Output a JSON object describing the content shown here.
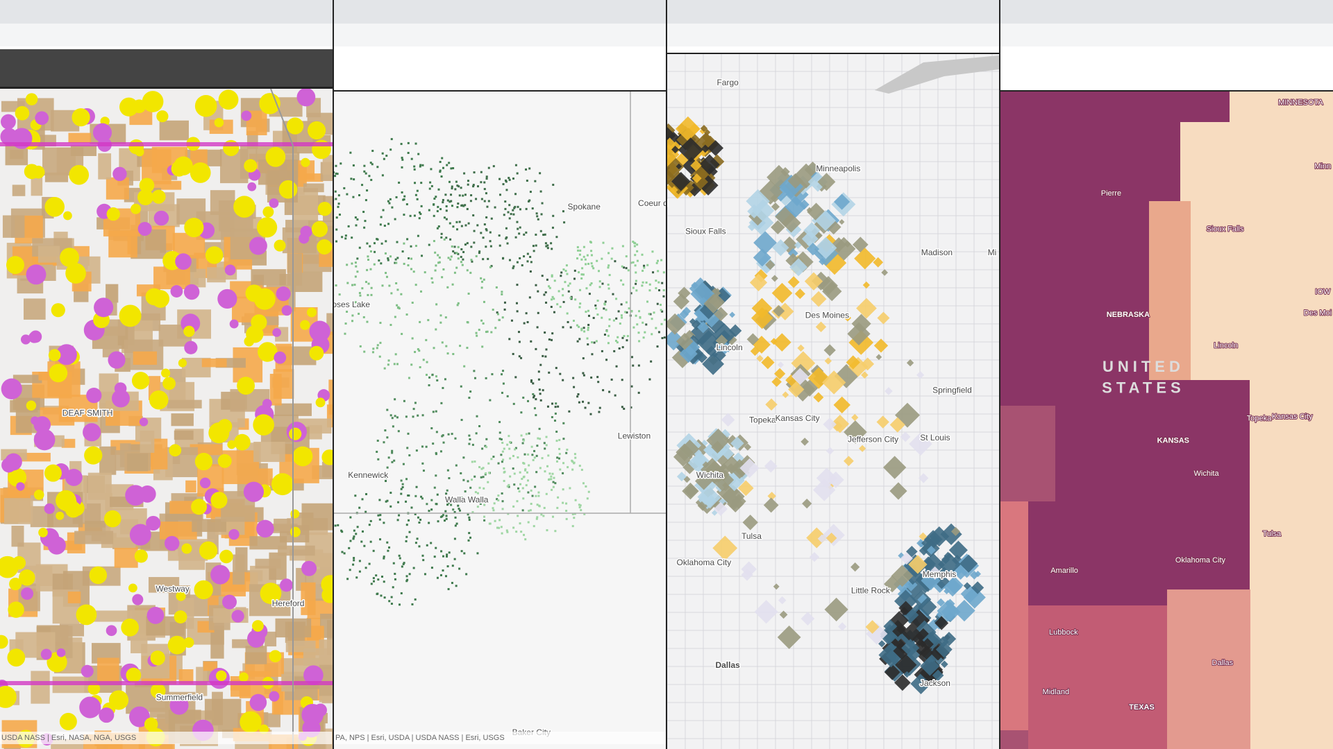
{
  "panels": [
    {
      "labels": [
        "DEAF SMITH",
        "Westway",
        "Hereford",
        "Summerfield"
      ],
      "attribution": "USDA NASS | Esri, NASA, NGA, USGS"
    },
    {
      "labels": [
        "Spokane",
        "Coeur d",
        "oses Lake",
        "Kennewick",
        "Walla Walla",
        "Lewiston",
        "Baker City"
      ],
      "attribution": "PA, NPS | Esri, USDA | USDA NASS | Esri, USGS"
    },
    {
      "labels": [
        "Fargo",
        "Minneapolis",
        "Sioux Falls",
        "Madison",
        "Mi",
        "Des Moines",
        "Lincoln",
        "Springfield",
        "Topeka",
        "Kansas City",
        "Jefferson City",
        "St Louis",
        "Wichita",
        "Tulsa",
        "Oklahoma City",
        "Little Rock",
        "Memphis",
        "Dallas",
        "Jackson"
      ]
    },
    {
      "labels": [
        "MINNESOTA",
        "Pierre",
        "Sioux Falls",
        "Minn",
        "NEBRASKA",
        "IOW",
        "Des Moi",
        "Lincoln",
        "UNITED",
        "STATES",
        "Topeka",
        "Kansas City",
        "KANSAS",
        "Wichita",
        "Tulsa",
        "Oklahoma City",
        "Amarillo",
        "Lubbock",
        "Dallas",
        "Midland",
        "TEXAS"
      ]
    }
  ]
}
